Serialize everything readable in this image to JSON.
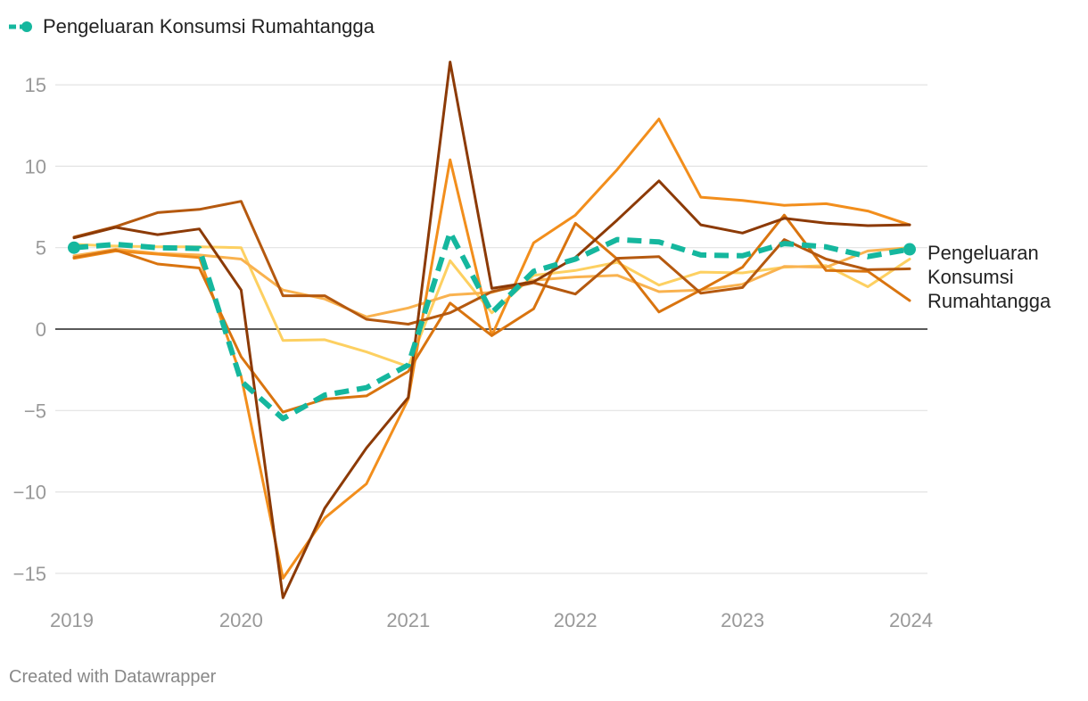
{
  "legend": {
    "label": "Pengeluaran Konsumsi Rumahtangga",
    "color": "#15b79e",
    "icon": "dashed-line-dot-icon"
  },
  "end_label": [
    "Pengeluaran",
    "Konsumsi",
    "Rumahtangga"
  ],
  "footer": {
    "credit": "Created with Datawrapper"
  },
  "chart_data": {
    "type": "line",
    "title": "",
    "xlabel": "",
    "ylabel": "",
    "xlim": [
      2019.0,
      2024.0
    ],
    "ylim": [
      -17,
      17
    ],
    "yticks": [
      15,
      10,
      5,
      0,
      -5,
      -10,
      -15
    ],
    "ytick_labels": [
      "15",
      "10",
      "5",
      "0",
      "−5",
      "−10",
      "−15"
    ],
    "xticks": [
      2019,
      2020,
      2021,
      2022,
      2023,
      2024
    ],
    "xtick_labels": [
      "2019",
      "2020",
      "2021",
      "2022",
      "2023",
      "2024"
    ],
    "grid": true,
    "x": [
      2019.0,
      2019.25,
      2019.5,
      2019.75,
      2020.0,
      2020.25,
      2020.5,
      2020.75,
      2021.0,
      2021.25,
      2021.5,
      2021.75,
      2022.0,
      2022.25,
      2022.5,
      2022.75,
      2023.0,
      2023.25,
      2023.5,
      2023.75,
      2024.0
    ],
    "series": [
      {
        "color": "#fdd061",
        "width": 3,
        "dash": false,
        "values": [
          5.2,
          5.1,
          5.05,
          5.05,
          5.0,
          -0.7,
          -0.65,
          -1.4,
          -2.3,
          4.2,
          1.0,
          3.3,
          3.6,
          4.1,
          2.7,
          3.5,
          3.45,
          3.8,
          3.9,
          2.6,
          4.3
        ]
      },
      {
        "color": "#f9b24f",
        "width": 3,
        "dash": false,
        "values": [
          4.5,
          4.9,
          4.65,
          4.55,
          4.3,
          2.4,
          1.85,
          0.75,
          1.3,
          2.1,
          2.25,
          3.0,
          3.2,
          3.3,
          2.3,
          2.4,
          2.75,
          3.85,
          3.8,
          4.8,
          5.0
        ]
      },
      {
        "color": "#f28e1c",
        "width": 3,
        "dash": false,
        "values": [
          4.35,
          4.8,
          4.6,
          4.4,
          -2.9,
          -15.3,
          -11.6,
          -9.5,
          -4.3,
          10.4,
          -0.4,
          5.3,
          7.0,
          9.8,
          12.9,
          8.1,
          7.9,
          7.6,
          7.7,
          7.25,
          6.4
        ]
      },
      {
        "color": "#d9740f",
        "width": 3,
        "dash": false,
        "values": [
          4.4,
          4.85,
          4.0,
          3.75,
          -1.7,
          -5.1,
          -4.3,
          -4.1,
          -2.6,
          1.6,
          -0.4,
          1.25,
          6.5,
          4.3,
          1.05,
          2.4,
          3.8,
          7.0,
          3.6,
          3.55,
          1.75
        ]
      },
      {
        "color": "#b5590f",
        "width": 3,
        "dash": false,
        "values": [
          5.65,
          6.3,
          7.15,
          7.35,
          7.85,
          2.05,
          2.05,
          0.6,
          0.3,
          1.0,
          2.3,
          2.85,
          2.15,
          4.35,
          4.45,
          2.2,
          2.55,
          5.5,
          4.3,
          3.65,
          3.7
        ]
      },
      {
        "color": "#8c3a06",
        "width": 3,
        "dash": false,
        "values": [
          5.6,
          6.25,
          5.8,
          6.15,
          2.4,
          -16.5,
          -11.0,
          -7.3,
          -4.2,
          16.4,
          2.5,
          2.9,
          4.4,
          6.7,
          9.1,
          6.4,
          5.9,
          6.8,
          6.5,
          6.35,
          6.4
        ]
      },
      {
        "name": "Pengeluaran Konsumsi Rumahtangga",
        "color": "#15b79e",
        "width": 6,
        "dash": true,
        "values": [
          5.0,
          5.2,
          5.0,
          4.95,
          -3.2,
          -5.5,
          -4.05,
          -3.6,
          -2.2,
          5.95,
          1.0,
          3.55,
          4.3,
          5.5,
          5.35,
          4.55,
          4.5,
          5.25,
          5.05,
          4.45,
          4.9
        ]
      }
    ]
  }
}
